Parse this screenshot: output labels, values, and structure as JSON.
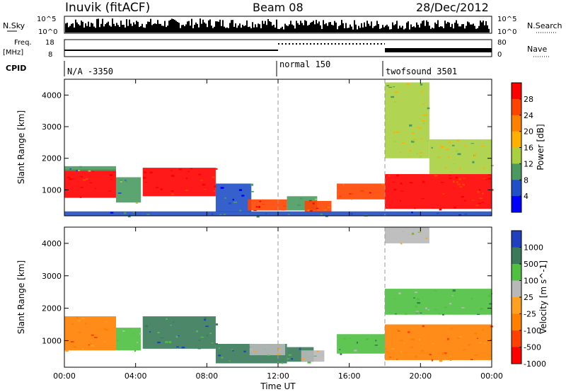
{
  "header": {
    "station": "Inuvik (fitACF)",
    "beam": "Beam 08",
    "date": "28/Dec/2012"
  },
  "status_panel": {
    "left_labels": {
      "nsky": "N.Sky",
      "freq_line1": "Freq.",
      "freq_line2": "[MHz]",
      "cpid": "CPID"
    },
    "right_labels": {
      "nsearch": "N.Search",
      "nave": "Nave"
    },
    "noise_ticks_left": [
      "10^5",
      "10^0"
    ],
    "noise_ticks_right": [
      "10^5",
      "10^0"
    ],
    "freq_ticks": [
      "18",
      "8"
    ],
    "nave_ticks": [
      "80",
      "0"
    ],
    "cpid_segments": [
      {
        "label": "N/A -3350",
        "start_hour": 0,
        "end_hour": 12
      },
      {
        "label": "normal 150",
        "start_hour": 12,
        "end_hour": 18
      },
      {
        "label": "twofsound 3501",
        "start_hour": 18,
        "end_hour": 24
      }
    ]
  },
  "chart_data": [
    {
      "type": "heatmap",
      "name": "power",
      "ylabel": "Slant Range [km]",
      "x_ticks": [
        "00:00",
        "04:00",
        "08:00",
        "12:00",
        "16:00",
        "20:00",
        "00:00"
      ],
      "y_ticks": [
        "1000",
        "2000",
        "3000",
        "4000"
      ],
      "xlim_hours": [
        0,
        24
      ],
      "ylim_km": [
        180,
        4500
      ],
      "colorbar": {
        "label": "Power [dB]",
        "ticks": [
          "28",
          "24",
          "20",
          "16",
          "12",
          "8",
          "4"
        ],
        "colors": [
          "#ff0000",
          "#ff4400",
          "#ff7f00",
          "#ffb000",
          "#a8d040",
          "#4a9a60",
          "#2050c8",
          "#0000ff"
        ]
      },
      "patches": [
        {
          "t0": 0.0,
          "t1": 2.9,
          "r0": 750,
          "r1": 1650,
          "level": 0
        },
        {
          "t0": 0.0,
          "t1": 2.9,
          "r0": 1600,
          "r1": 1750,
          "level": 5
        },
        {
          "t0": 4.4,
          "t1": 8.5,
          "r0": 800,
          "r1": 1700,
          "level": 0
        },
        {
          "t0": 2.9,
          "t1": 4.3,
          "r0": 600,
          "r1": 1400,
          "level": 5
        },
        {
          "t0": 8.5,
          "t1": 10.5,
          "r0": 300,
          "r1": 1200,
          "level": 6
        },
        {
          "t0": 10.3,
          "t1": 12.5,
          "r0": 350,
          "r1": 700,
          "level": 1
        },
        {
          "t0": 12.5,
          "t1": 14.2,
          "r0": 350,
          "r1": 800,
          "level": 5
        },
        {
          "t0": 13.5,
          "t1": 15.0,
          "r0": 300,
          "r1": 650,
          "level": 1
        },
        {
          "t0": 15.3,
          "t1": 18.0,
          "r0": 700,
          "r1": 1200,
          "level": 1
        },
        {
          "t0": 18.0,
          "t1": 24.0,
          "r0": 400,
          "r1": 1500,
          "level": 0
        },
        {
          "t0": 18.0,
          "t1": 20.5,
          "r0": 2000,
          "r1": 4400,
          "level": 4
        },
        {
          "t0": 20.5,
          "t1": 24.0,
          "r0": 1500,
          "r1": 2600,
          "level": 4
        },
        {
          "t0": 0.0,
          "t1": 24.0,
          "r0": 180,
          "r1": 320,
          "level": 6
        }
      ]
    },
    {
      "type": "heatmap",
      "name": "velocity",
      "ylabel": "Slant Range [km]",
      "xlabel": "Time UT",
      "x_ticks": [
        "00:00",
        "04:00",
        "08:00",
        "12:00",
        "16:00",
        "20:00",
        "00:00"
      ],
      "y_ticks": [
        "1000",
        "2000",
        "3000",
        "4000"
      ],
      "xlim_hours": [
        0,
        24
      ],
      "ylim_km": [
        180,
        4500
      ],
      "colorbar": {
        "label": "Velocity [m s^-1]",
        "ticks": [
          "1000",
          "500",
          "100",
          "25",
          "-25",
          "-100",
          "-500",
          "-1000"
        ],
        "colors": [
          "#2040c0",
          "#3a7a5a",
          "#4fc040",
          "#b8b8b8",
          "#ffa020",
          "#ff7f00",
          "#ff4000",
          "#ff0000"
        ]
      },
      "patches": [
        {
          "t0": 0.0,
          "t1": 2.9,
          "r0": 700,
          "r1": 1750,
          "level": 5
        },
        {
          "t0": 2.9,
          "t1": 4.3,
          "r0": 700,
          "r1": 1400,
          "level": 2
        },
        {
          "t0": 4.4,
          "t1": 8.5,
          "r0": 750,
          "r1": 1750,
          "level": 1
        },
        {
          "t0": 8.5,
          "t1": 12.5,
          "r0": 300,
          "r1": 900,
          "level": 1
        },
        {
          "t0": 10.4,
          "t1": 12.4,
          "r0": 550,
          "r1": 900,
          "level": 3
        },
        {
          "t0": 12.5,
          "t1": 14.0,
          "r0": 350,
          "r1": 800,
          "level": 1
        },
        {
          "t0": 13.3,
          "t1": 14.6,
          "r0": 350,
          "r1": 700,
          "level": 3
        },
        {
          "t0": 15.3,
          "t1": 18.0,
          "r0": 600,
          "r1": 1200,
          "level": 2
        },
        {
          "t0": 18.0,
          "t1": 24.0,
          "r0": 400,
          "r1": 1500,
          "level": 5
        },
        {
          "t0": 18.0,
          "t1": 20.5,
          "r0": 4000,
          "r1": 4500,
          "level": 3
        },
        {
          "t0": 18.0,
          "t1": 24.0,
          "r0": 1800,
          "r1": 2600,
          "level": 2
        }
      ]
    }
  ]
}
